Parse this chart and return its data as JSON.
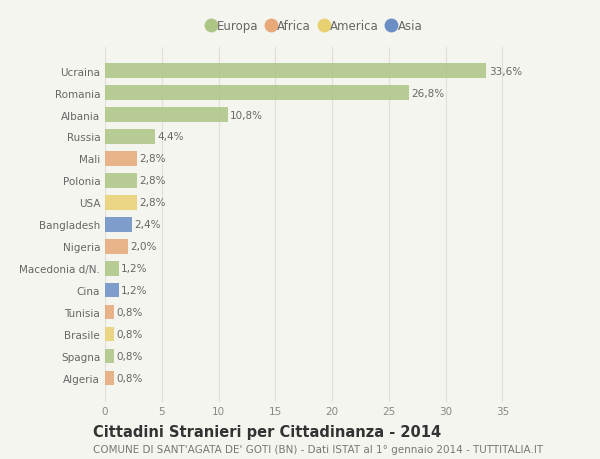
{
  "categories": [
    "Ucraina",
    "Romania",
    "Albania",
    "Russia",
    "Mali",
    "Polonia",
    "USA",
    "Bangladesh",
    "Nigeria",
    "Macedonia d/N.",
    "Cina",
    "Tunisia",
    "Brasile",
    "Spagna",
    "Algeria"
  ],
  "values": [
    33.6,
    26.8,
    10.8,
    4.4,
    2.8,
    2.8,
    2.8,
    2.4,
    2.0,
    1.2,
    1.2,
    0.8,
    0.8,
    0.8,
    0.8
  ],
  "labels": [
    "33,6%",
    "26,8%",
    "10,8%",
    "4,4%",
    "2,8%",
    "2,8%",
    "2,8%",
    "2,4%",
    "2,0%",
    "1,2%",
    "1,2%",
    "0,8%",
    "0,8%",
    "0,8%",
    "0,8%"
  ],
  "bar_colors": [
    "#adc585",
    "#adc585",
    "#adc585",
    "#adc585",
    "#e8a878",
    "#adc585",
    "#e8d070",
    "#6b8ec4",
    "#e8a878",
    "#adc585",
    "#6b8ec4",
    "#e8a878",
    "#e8d070",
    "#adc585",
    "#e8a878"
  ],
  "legend": [
    {
      "label": "Europa",
      "color": "#adc585"
    },
    {
      "label": "Africa",
      "color": "#e8a878"
    },
    {
      "label": "America",
      "color": "#e8d070"
    },
    {
      "label": "Asia",
      "color": "#6b8ec4"
    }
  ],
  "title": "Cittadini Stranieri per Cittadinanza - 2014",
  "subtitle": "COMUNE DI SANT'AGATA DE' GOTI (BN) - Dati ISTAT al 1° gennaio 2014 - TUTTITALIA.IT",
  "xlim": [
    0,
    37
  ],
  "xticks": [
    0,
    5,
    10,
    15,
    20,
    25,
    30,
    35
  ],
  "background_color": "#f5f5f0",
  "grid_color": "#e0e0d8",
  "title_fontsize": 10.5,
  "subtitle_fontsize": 7.5,
  "label_fontsize": 7.5,
  "tick_fontsize": 7.5,
  "bar_height": 0.65
}
